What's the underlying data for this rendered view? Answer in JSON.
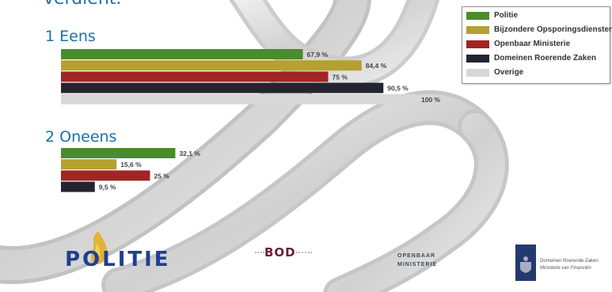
{
  "heading_partial": "verdient.",
  "colors": {
    "Politie": "#4a8b2d",
    "Bijzondere Opsporingsdiensten": "#b5a032",
    "Openbaar Ministerie": "#a32424",
    "Domeinen Roerende Zaken": "#242431",
    "Overige": "#d8d8d8"
  },
  "chart_data": {
    "type": "bar",
    "orientation": "horizontal",
    "categories": [
      "1 Eens",
      "2 Oneens"
    ],
    "series": [
      {
        "name": "Politie",
        "values": [
          67.9,
          32.1
        ],
        "labels": [
          "67,9 %",
          "32,1 %"
        ]
      },
      {
        "name": "Bijzondere Opsporingsdiensten",
        "values": [
          84.4,
          15.6
        ],
        "labels": [
          "84,4 %",
          "15,6 %"
        ]
      },
      {
        "name": "Openbaar Ministerie",
        "values": [
          75,
          25
        ],
        "labels": [
          "75 %",
          "25 %"
        ]
      },
      {
        "name": "Domeinen Roerende Zaken",
        "values": [
          90.5,
          9.5
        ],
        "labels": [
          "90,5 %",
          "9,5 %"
        ]
      },
      {
        "name": "Overige",
        "values": [
          100,
          null
        ],
        "labels": [
          "100 %",
          ""
        ]
      }
    ],
    "xlim": [
      0,
      100
    ],
    "legend": "top-right",
    "grid": false
  },
  "logos": {
    "politie": "POLITIE",
    "bod": "BOD",
    "om": [
      "OPENBAAR",
      "MINISTERIE"
    ],
    "domeinen": [
      "Domeinen Roerende Zaken",
      "Ministerie van Financiën"
    ]
  }
}
